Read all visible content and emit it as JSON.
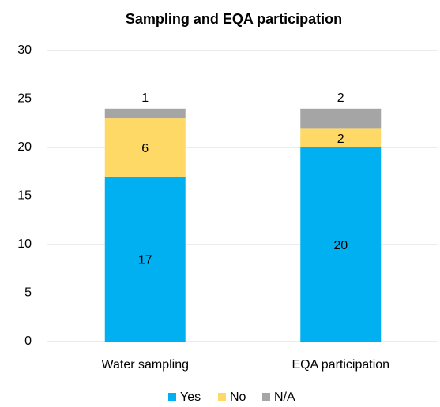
{
  "chart_data": {
    "type": "stacked_bar",
    "title": "Sampling and EQA participation",
    "categories": [
      "Water sampling",
      "EQA participation"
    ],
    "series": [
      {
        "name": "Yes",
        "color": "#00b0f0",
        "values": [
          17,
          20
        ]
      },
      {
        "name": "No",
        "color": "#ffd966",
        "values": [
          6,
          2
        ]
      },
      {
        "name": "N/A",
        "color": "#a5a5a5",
        "values": [
          1,
          2
        ]
      }
    ],
    "ylim": [
      0,
      30
    ],
    "yticks": [
      0,
      5,
      10,
      15,
      20,
      25,
      30
    ],
    "grid": true,
    "legend": "bottom"
  }
}
